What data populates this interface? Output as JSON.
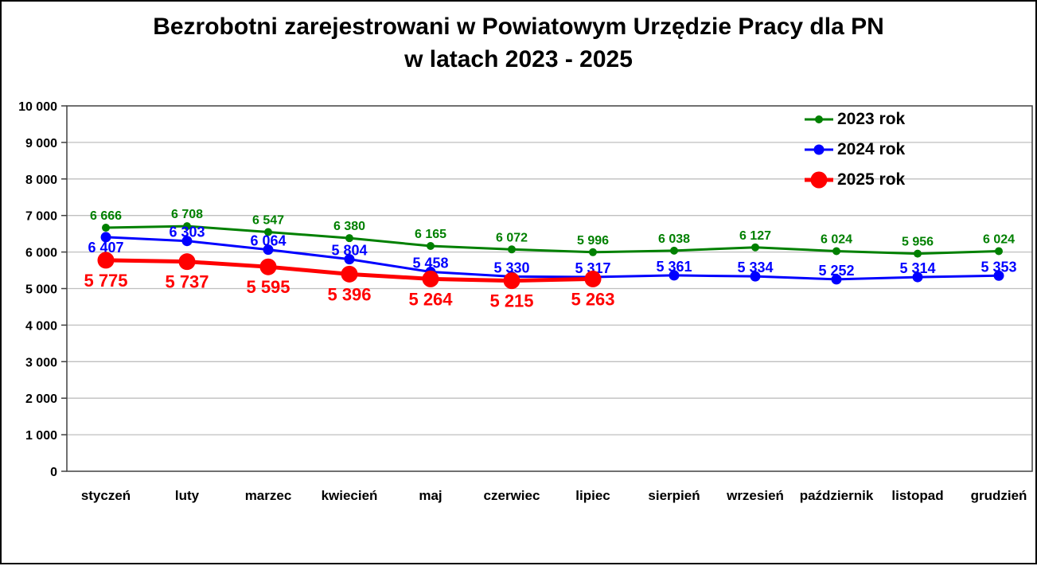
{
  "page": {
    "background": "#FFFFFF",
    "border_color": "#000000"
  },
  "chart_data": {
    "type": "line",
    "title": "Bezrobotni zarejestrowani w Powiatowym Urzędzie Pracy dla PN",
    "title_line2": "w latach 2023 - 2025",
    "categories": [
      "styczeń",
      "luty",
      "marzec",
      "kwiecień",
      "maj",
      "czerwiec",
      "lipiec",
      "sierpień",
      "wrzesień",
      "październik",
      "listopad",
      "grudzień"
    ],
    "series": [
      {
        "name": "2023 rok",
        "color": "#008000",
        "values": [
          6666,
          6708,
          6547,
          6380,
          6165,
          6072,
          5996,
          6038,
          6127,
          6024,
          5956,
          6024
        ],
        "label_side": "above"
      },
      {
        "name": "2024 rok",
        "color": "#0000FF",
        "values": [
          6407,
          6303,
          6064,
          5804,
          5458,
          5330,
          5317,
          5361,
          5334,
          5252,
          5314,
          5353
        ],
        "label_side": "above",
        "label_side_overrides": {
          "0": "below"
        }
      },
      {
        "name": "2025 rok",
        "color": "#FF0000",
        "values": [
          5775,
          5737,
          5595,
          5396,
          5264,
          5215,
          5263
        ],
        "label_side": "below"
      }
    ],
    "data_labels_on": true,
    "ylim": [
      0,
      10000
    ],
    "ytick_step": 1000,
    "ytick_labels": [
      "0",
      "1 000",
      "2 000",
      "3 000",
      "4 000",
      "5 000",
      "6 000",
      "7 000",
      "8 000",
      "9 000",
      "10 000"
    ],
    "grid": true,
    "gridline_color": "#BFBFBF",
    "axis_color": "#404040",
    "legend_position": "top-right"
  }
}
